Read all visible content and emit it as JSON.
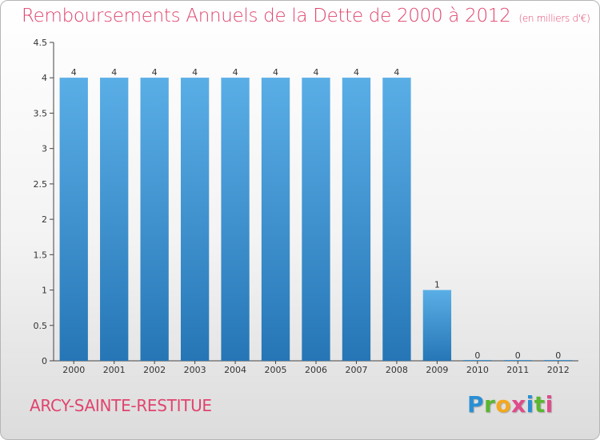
{
  "title": "Remboursements Annuels de la Dette de 2000 à 2012",
  "unit": "(en milliers d'€)",
  "commune": "ARCY-SAINTE-RESTITUE",
  "logo": {
    "letters": [
      "P",
      "r",
      "o",
      "x",
      "i",
      "t",
      "i"
    ]
  },
  "colors": {
    "accent": "#e0446e",
    "bar_top": "#5aaee6",
    "bar_bottom": "#2676b6"
  },
  "chart_data": {
    "type": "bar",
    "title": "Remboursements Annuels de la Dette de 2000 à 2012",
    "ylabel": "en milliers d'€",
    "categories": [
      "2000",
      "2001",
      "2002",
      "2003",
      "2004",
      "2005",
      "2006",
      "2007",
      "2008",
      "2009",
      "2010",
      "2011",
      "2012"
    ],
    "values": [
      4,
      4,
      4,
      4,
      4,
      4,
      4,
      4,
      4,
      1,
      0,
      0,
      0
    ],
    "ylim": [
      0,
      4.5
    ],
    "yticks": [
      0,
      0.5,
      1,
      1.5,
      2,
      2.5,
      3,
      3.5,
      4,
      4.5
    ],
    "ytick_labels": [
      "0",
      "0.5",
      "1",
      "1.5",
      "2",
      "2.5",
      "3",
      "3.5",
      "4",
      "4.5"
    ],
    "grid": false
  }
}
